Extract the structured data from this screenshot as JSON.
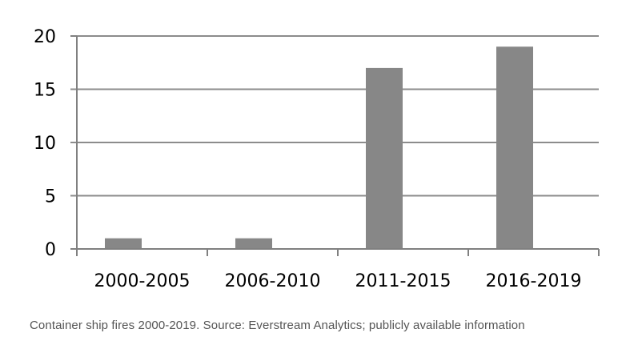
{
  "chart_data": {
    "type": "bar",
    "categories": [
      "2000-2005",
      "2006-2010",
      "2011-2015",
      "2016-2019"
    ],
    "values": [
      1,
      1,
      17,
      19
    ],
    "ylim": [
      0,
      20
    ],
    "yticks": [
      0,
      5,
      10,
      15,
      20
    ],
    "grid": true,
    "bar_color": "#878787",
    "grid_color": "#8c8c8c",
    "axis_color": "#808080",
    "legend": "none"
  },
  "caption": "Container ship fires 2000-2019. Source: Everstream Analytics; publicly available information"
}
